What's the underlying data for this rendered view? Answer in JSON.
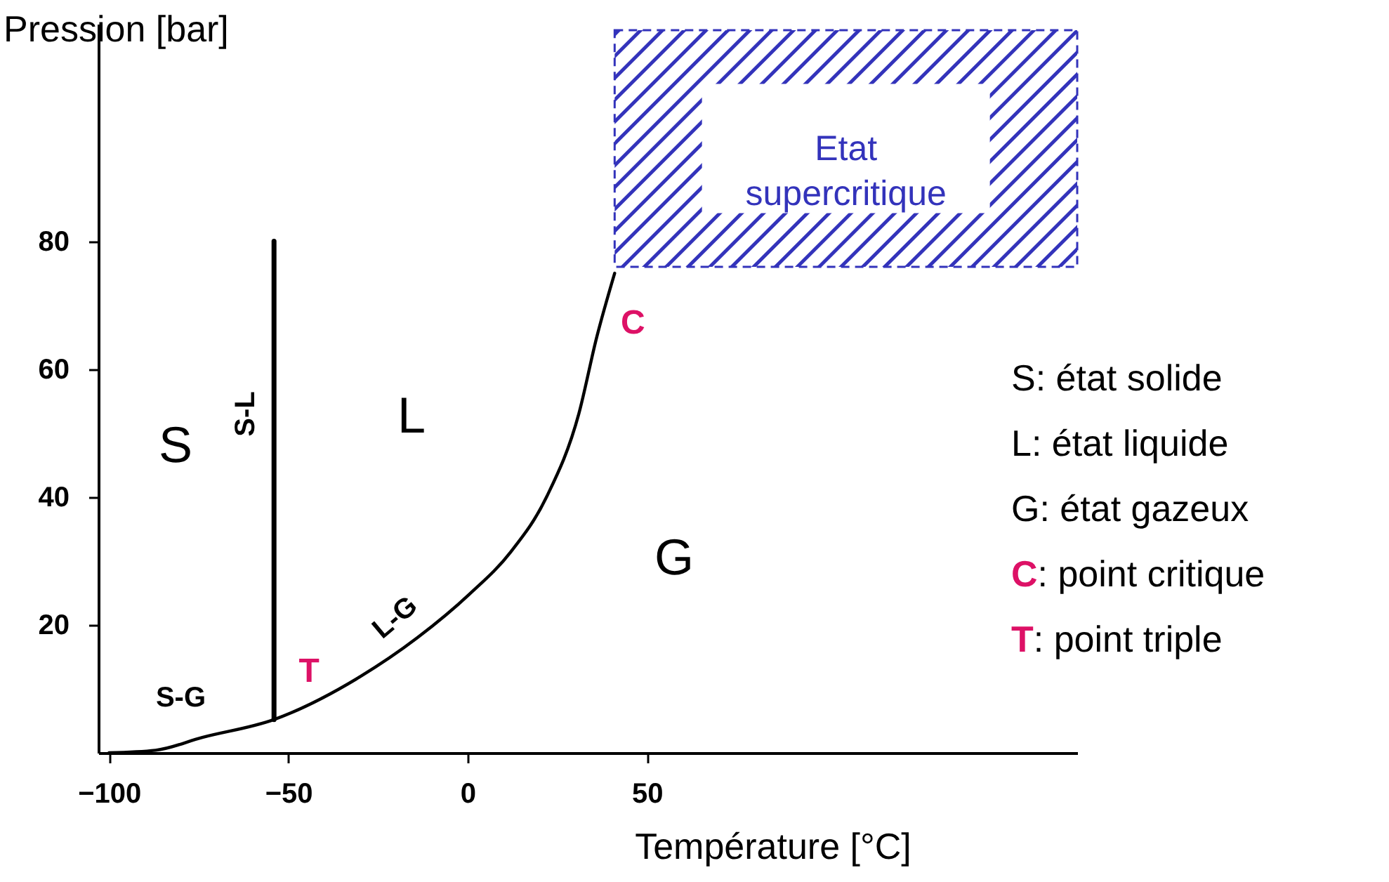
{
  "chart_data": {
    "type": "line",
    "xlabel": "Température [°C]",
    "ylabel": "Pression [bar]",
    "xlim": [
      -103,
      170
    ],
    "ylim": [
      0,
      114
    ],
    "xticks": [
      -100,
      -50,
      0,
      50
    ],
    "yticks": [
      20,
      40,
      60,
      80
    ],
    "grid": false,
    "marker": "none",
    "series": [
      {
        "color": "#000000",
        "x": [
          -100,
          -87,
          -74,
          -54,
          -30,
          -14,
          0.5,
          12,
          22,
          31,
          36,
          41
        ],
        "values": [
          0,
          0.4,
          2.4,
          5.2,
          11.9,
          18,
          24.8,
          31.4,
          40,
          53,
          65,
          75
        ]
      },
      {
        "color": "#000000",
        "x": [
          -54,
          -54
        ],
        "values": [
          5.2,
          80
        ]
      }
    ],
    "bands": [
      {
        "axis": "y",
        "from": 76,
        "to": 113,
        "label": "Etat supercritique",
        "color": "#3333bb"
      }
    ],
    "annotations": [
      "S",
      "L",
      "G",
      {
        "text": "S-L",
        "x": -54,
        "y": 53
      },
      {
        "text": "S-G",
        "x": -80,
        "y": 1.5
      },
      {
        "text": "L-G",
        "x": -14,
        "y": 18
      },
      {
        "text": "T",
        "x": -54,
        "y": 5.2
      },
      {
        "text": "C",
        "x": 41,
        "y": 75
      },
      "S: état solide",
      "L: état liquide",
      "G: état gazeux",
      "C: point critique",
      "T: point triple"
    ]
  }
}
